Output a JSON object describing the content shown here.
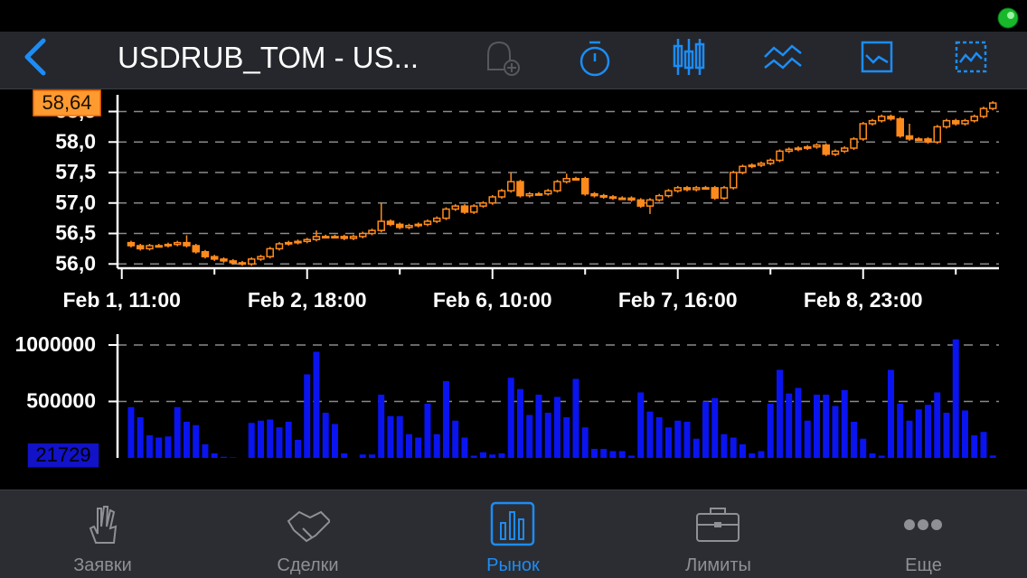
{
  "nav": {
    "title": "USDRUB_TOM - US..."
  },
  "tabs": [
    "Заявки",
    "Сделки",
    "Рынок",
    "Лимиты",
    "Еще"
  ],
  "active_tab": 2,
  "chart_data": [
    {
      "type": "candlestick",
      "color": "#ff8a1c",
      "xlim": [
        -1.46,
        93.66
      ],
      "xticks": [
        {
          "value": -1,
          "label": "Feb 1, 11:00"
        },
        {
          "value": 19,
          "label": "Feb 2, 18:00"
        },
        {
          "value": 39,
          "label": "Feb 6, 10:00"
        },
        {
          "value": 59,
          "label": "Feb 7, 16:00"
        },
        {
          "value": 79,
          "label": "Feb 8, 23:00"
        }
      ],
      "xminor_ticks": [
        9,
        29,
        49,
        69,
        89
      ],
      "ylim": [
        55.93,
        58.7
      ],
      "yticks": [
        {
          "value": 56,
          "label": "56,0"
        },
        {
          "value": 56.5,
          "label": "56,5"
        },
        {
          "value": 57,
          "label": "57,0"
        },
        {
          "value": 57.5,
          "label": "57,5"
        },
        {
          "value": 58,
          "label": "58,0"
        },
        {
          "value": 58.5,
          "label": "58,5"
        }
      ],
      "grid": true,
      "current": {
        "value": 58.64,
        "label": "58,64"
      },
      "open": [
        56.35,
        56.3,
        56.25,
        56.3,
        56.3,
        56.32,
        56.35,
        56.3,
        56.2,
        56.12,
        56.08,
        56.05,
        56.02,
        56.0,
        56.08,
        56.12,
        56.25,
        56.33,
        56.35,
        56.37,
        56.4,
        56.45,
        56.45,
        56.45,
        56.42,
        56.45,
        56.5,
        56.55,
        56.7,
        56.65,
        56.6,
        56.63,
        56.65,
        56.7,
        56.75,
        56.9,
        56.95,
        56.85,
        56.95,
        57.0,
        57.1,
        57.2,
        57.35,
        57.12,
        57.15,
        57.15,
        57.2,
        57.35,
        57.4,
        57.4,
        57.15,
        57.12,
        57.1,
        57.08,
        57.08,
        57.05,
        56.95,
        57.05,
        57.12,
        57.2,
        57.25,
        57.22,
        57.25,
        57.25,
        57.08,
        57.25,
        57.5,
        57.6,
        57.62,
        57.65,
        57.7,
        57.85,
        57.88,
        57.9,
        57.92,
        57.95,
        57.8,
        57.85,
        57.9,
        58.05,
        58.3,
        58.35,
        58.42,
        58.38,
        58.1,
        58.05,
        58.05,
        58.0,
        58.25,
        58.35,
        58.3,
        58.35,
        58.42,
        58.55
      ],
      "high": [
        56.38,
        56.33,
        56.33,
        56.33,
        56.35,
        56.38,
        56.47,
        56.33,
        56.23,
        56.15,
        56.11,
        56.08,
        56.05,
        56.11,
        56.15,
        56.28,
        56.36,
        56.38,
        56.4,
        56.43,
        56.55,
        56.48,
        56.48,
        56.48,
        56.48,
        56.53,
        56.58,
        57.0,
        56.73,
        56.68,
        56.66,
        56.68,
        56.73,
        56.78,
        56.93,
        56.98,
        56.98,
        56.98,
        57.03,
        57.13,
        57.23,
        57.5,
        57.38,
        57.18,
        57.18,
        57.23,
        57.38,
        57.48,
        57.43,
        57.43,
        57.18,
        57.15,
        57.13,
        57.11,
        57.11,
        57.08,
        57.08,
        57.15,
        57.23,
        57.28,
        57.28,
        57.28,
        57.28,
        57.28,
        57.28,
        57.53,
        57.63,
        57.65,
        57.68,
        57.73,
        57.88,
        57.91,
        57.93,
        57.95,
        57.98,
        57.98,
        57.88,
        57.93,
        58.08,
        58.33,
        58.38,
        58.45,
        58.45,
        58.41,
        58.3,
        58.08,
        58.08,
        58.28,
        58.38,
        58.38,
        58.38,
        58.45,
        58.58,
        58.67
      ],
      "low": [
        56.27,
        56.22,
        56.22,
        56.27,
        56.27,
        56.29,
        56.27,
        56.17,
        56.09,
        56.05,
        56.02,
        55.99,
        55.97,
        55.97,
        56.05,
        56.09,
        56.22,
        56.3,
        56.32,
        56.34,
        56.37,
        56.42,
        56.42,
        56.39,
        56.39,
        56.42,
        56.47,
        56.52,
        56.62,
        56.57,
        56.57,
        56.6,
        56.62,
        56.67,
        56.72,
        56.87,
        56.82,
        56.82,
        56.92,
        56.97,
        57.07,
        57.17,
        57.09,
        57.09,
        57.12,
        57.12,
        57.17,
        57.32,
        57.37,
        57.12,
        57.09,
        57.07,
        57.05,
        57.05,
        57.02,
        56.92,
        56.82,
        57.02,
        57.09,
        57.17,
        57.19,
        57.19,
        57.22,
        57.05,
        57.05,
        57.22,
        57.47,
        57.57,
        57.59,
        57.62,
        57.67,
        57.82,
        57.85,
        57.87,
        57.89,
        57.77,
        57.77,
        57.82,
        57.87,
        58.02,
        58.27,
        58.32,
        58.35,
        58.07,
        58.02,
        58.02,
        57.97,
        57.97,
        58.22,
        58.27,
        58.27,
        58.32,
        58.39,
        58.52
      ],
      "close": [
        56.3,
        56.25,
        56.3,
        56.3,
        56.32,
        56.35,
        56.3,
        56.2,
        56.12,
        56.08,
        56.05,
        56.02,
        56.0,
        56.08,
        56.12,
        56.25,
        56.33,
        56.35,
        56.37,
        56.4,
        56.45,
        56.45,
        56.45,
        56.42,
        56.45,
        56.5,
        56.55,
        56.7,
        56.65,
        56.6,
        56.63,
        56.65,
        56.7,
        56.75,
        56.9,
        56.95,
        56.85,
        56.95,
        57.0,
        57.1,
        57.2,
        57.35,
        57.12,
        57.15,
        57.15,
        57.2,
        57.35,
        57.4,
        57.4,
        57.15,
        57.12,
        57.1,
        57.08,
        57.08,
        57.05,
        56.95,
        57.05,
        57.12,
        57.2,
        57.25,
        57.22,
        57.25,
        57.25,
        57.08,
        57.25,
        57.5,
        57.6,
        57.62,
        57.65,
        57.7,
        57.85,
        57.88,
        57.9,
        57.92,
        57.95,
        57.8,
        57.85,
        57.9,
        58.05,
        58.3,
        58.35,
        58.42,
        58.38,
        58.1,
        58.05,
        58.05,
        58.0,
        58.25,
        58.35,
        58.3,
        58.35,
        58.42,
        58.55,
        58.64
      ]
    },
    {
      "type": "bar",
      "color": "#0a14f0",
      "xlim": [
        -1.46,
        93.66
      ],
      "ylim": [
        0,
        1056000
      ],
      "yticks": [
        500000,
        1000000
      ],
      "grid": true,
      "values": [
        450000,
        360000,
        200000,
        180000,
        190000,
        450000,
        320000,
        290000,
        120000,
        40000,
        10000,
        5000,
        0,
        310000,
        330000,
        340000,
        270000,
        320000,
        160000,
        740000,
        940000,
        400000,
        300000,
        40000,
        0,
        30000,
        30000,
        560000,
        370000,
        370000,
        210000,
        180000,
        480000,
        210000,
        680000,
        330000,
        180000,
        20000,
        50000,
        30000,
        40000,
        710000,
        610000,
        380000,
        560000,
        400000,
        540000,
        360000,
        700000,
        270000,
        80000,
        80000,
        60000,
        60000,
        20000,
        580000,
        410000,
        360000,
        270000,
        330000,
        320000,
        170000,
        500000,
        530000,
        210000,
        180000,
        120000,
        40000,
        60000,
        480000,
        780000,
        570000,
        620000,
        330000,
        560000,
        560000,
        460000,
        600000,
        320000,
        170000,
        40000,
        20000,
        780000,
        480000,
        330000,
        430000,
        470000,
        580000,
        400000,
        1050000,
        420000,
        200000,
        230000,
        21729
      ]
    }
  ]
}
